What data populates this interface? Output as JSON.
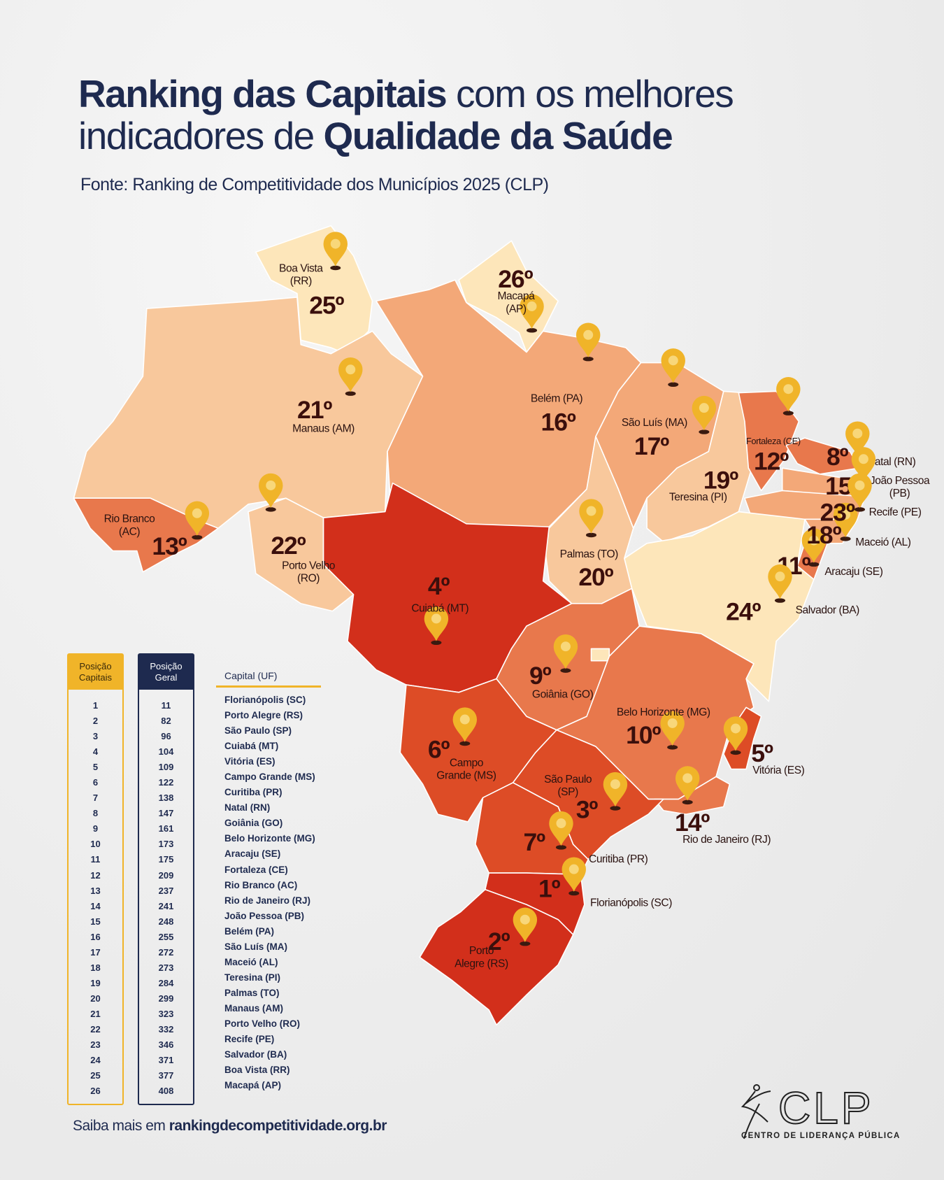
{
  "title": {
    "line1_bold": "Ranking das Capitais",
    "line1_regular": " com os melhores",
    "line2_regular": "indicadores de ",
    "line2_bold": "Qualidade da Saúde"
  },
  "subtitle": "Fonte: Ranking de Competitividade dos Municípios 2025 (CLP)",
  "colors": {
    "navy": "#1e2a4f",
    "pin": "#f0b429",
    "tier1": "#d22f1b",
    "tier2": "#dd4c26",
    "tier3": "#e8784c",
    "tier4": "#f3a878",
    "tier5": "#f8c89c",
    "tier6": "#fde6ba"
  },
  "map": {
    "labels": [
      {
        "rank": "1º",
        "name": "Florianópolis (SC)"
      },
      {
        "rank": "2º",
        "name": "Porto Alegre (RS)"
      },
      {
        "rank": "3º",
        "name": "São Paulo (SP)"
      },
      {
        "rank": "4º",
        "name": "Cuiabá (MT)"
      },
      {
        "rank": "5º",
        "name": "Vitória (ES)"
      },
      {
        "rank": "6º",
        "name": "Campo Grande (MS)"
      },
      {
        "rank": "7º",
        "name": "Curitiba (PR)"
      },
      {
        "rank": "8º",
        "name": "Natal (RN)"
      },
      {
        "rank": "9º",
        "name": "Goiânia (GO)"
      },
      {
        "rank": "10º",
        "name": "Belo Horizonte (MG)"
      },
      {
        "rank": "11º",
        "name": "Aracaju (SE)"
      },
      {
        "rank": "12º",
        "name": "Fortaleza (CE)"
      },
      {
        "rank": "13º",
        "name": "Rio Branco (AC)"
      },
      {
        "rank": "14º",
        "name": "Rio de Janeiro (RJ)"
      },
      {
        "rank": "15º",
        "name": "João Pessoa (PB)"
      },
      {
        "rank": "16º",
        "name": "Belém (PA)"
      },
      {
        "rank": "17º",
        "name": "São Luís (MA)"
      },
      {
        "rank": "18º",
        "name": "Maceió (AL)"
      },
      {
        "rank": "19º",
        "name": "Teresina (PI)"
      },
      {
        "rank": "20º",
        "name": "Palmas (TO)"
      },
      {
        "rank": "21º",
        "name": "Manaus (AM)"
      },
      {
        "rank": "22º",
        "name": "Porto Velho (RO)"
      },
      {
        "rank": "23º",
        "name": "Recife (PE)"
      },
      {
        "rank": "24º",
        "name": "Salvador (BA)"
      },
      {
        "rank": "25º",
        "name": "Boa Vista (RR)"
      },
      {
        "rank": "26º",
        "name": "Macapá (AP)"
      }
    ]
  },
  "table": {
    "header_position_capitals": "Posição Capitais",
    "header_position_overall": "Posição Geral",
    "header_capital": "Capital (UF)",
    "rows": [
      {
        "pos": "1",
        "geral": "11",
        "capital": "Florianópolis (SC)"
      },
      {
        "pos": "2",
        "geral": "82",
        "capital": "Porto Alegre (RS)"
      },
      {
        "pos": "3",
        "geral": "96",
        "capital": "São Paulo (SP)"
      },
      {
        "pos": "4",
        "geral": "104",
        "capital": "Cuiabá (MT)"
      },
      {
        "pos": "5",
        "geral": "109",
        "capital": "Vitória (ES)"
      },
      {
        "pos": "6",
        "geral": "122",
        "capital": "Campo Grande (MS)"
      },
      {
        "pos": "7",
        "geral": "138",
        "capital": "Curitiba (PR)"
      },
      {
        "pos": "8",
        "geral": "147",
        "capital": "Natal (RN)"
      },
      {
        "pos": "9",
        "geral": "161",
        "capital": "Goiânia (GO)"
      },
      {
        "pos": "10",
        "geral": "173",
        "capital": "Belo Horizonte (MG)"
      },
      {
        "pos": "11",
        "geral": "175",
        "capital": "Aracaju (SE)"
      },
      {
        "pos": "12",
        "geral": "209",
        "capital": "Fortaleza (CE)"
      },
      {
        "pos": "13",
        "geral": "237",
        "capital": "Rio Branco (AC)"
      },
      {
        "pos": "14",
        "geral": "241",
        "capital": "Rio de Janeiro (RJ)"
      },
      {
        "pos": "15",
        "geral": "248",
        "capital": "João Pessoa (PB)"
      },
      {
        "pos": "16",
        "geral": "255",
        "capital": "Belém (PA)"
      },
      {
        "pos": "17",
        "geral": "272",
        "capital": "São Luís (MA)"
      },
      {
        "pos": "18",
        "geral": "273",
        "capital": "Maceió (AL)"
      },
      {
        "pos": "19",
        "geral": "284",
        "capital": "Teresina (PI)"
      },
      {
        "pos": "20",
        "geral": "299",
        "capital": "Palmas (TO)"
      },
      {
        "pos": "21",
        "geral": "323",
        "capital": "Manaus (AM)"
      },
      {
        "pos": "22",
        "geral": "332",
        "capital": "Porto Velho (RO)"
      },
      {
        "pos": "23",
        "geral": "346",
        "capital": "Recife (PE)"
      },
      {
        "pos": "24",
        "geral": "371",
        "capital": "Salvador (BA)"
      },
      {
        "pos": "25",
        "geral": "377",
        "capital": "Boa Vista (RR)"
      },
      {
        "pos": "26",
        "geral": "408",
        "capital": "Macapá (AP)"
      }
    ]
  },
  "footer": {
    "prefix": "Saiba mais em ",
    "link": "rankingdecompetitividade.org.br"
  },
  "logo": {
    "mark": "CLP",
    "tagline": "CENTRO DE LIDERANÇA PÚBLICA"
  }
}
